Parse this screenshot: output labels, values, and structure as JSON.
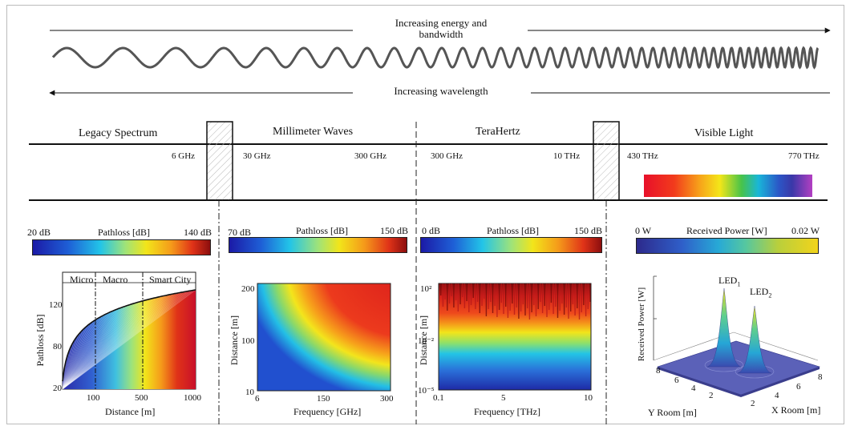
{
  "header": {
    "energy_label_line1": "Increasing energy and",
    "energy_label_line2": "bandwidth",
    "wavelength_label": "Increasing wavelength"
  },
  "bands": [
    {
      "title": "Legacy Spectrum",
      "upper": "6 GHz"
    },
    {
      "title": "Millimeter Waves",
      "lower": "30 GHz",
      "upper": "300 GHz"
    },
    {
      "title": "TeraHertz",
      "lower": "300 GHz",
      "upper": "10 THz"
    },
    {
      "title": "Visible Light",
      "lower": "430 THz",
      "upper": "770 THz"
    }
  ],
  "colorbars": [
    {
      "min": "20 dB",
      "label": "Pathloss [dB]",
      "max": "140 dB"
    },
    {
      "min": "70 dB",
      "label": "Pathloss [dB]",
      "max": "150 dB"
    },
    {
      "min": "0 dB",
      "label": "Pathloss [dB]",
      "max": "150 dB"
    },
    {
      "min": "0 W",
      "label": "Received Power [W]",
      "max": "0.02 W"
    }
  ],
  "plots": {
    "legacy": {
      "regions": [
        "Micro",
        "Macro",
        "Smart City"
      ],
      "ylabel": "Pathloss [dB]",
      "xlabel": "Distance [m]",
      "yticks": [
        "120",
        "80",
        "20"
      ],
      "xticks": [
        "100",
        "500",
        "1000"
      ]
    },
    "mmwave": {
      "ylabel": "Distance [m]",
      "xlabel": "Frequency [GHz]",
      "yticks": [
        "200",
        "100",
        "10"
      ],
      "xticks": [
        "6",
        "150",
        "300"
      ]
    },
    "thz": {
      "ylabel": "Distance [m]",
      "xlabel": "Frequency [THz]",
      "yticks": [
        "10²",
        "10⁻²",
        "10⁻⁵"
      ],
      "xticks": [
        "0.1",
        "5",
        "10"
      ]
    },
    "vlc": {
      "zlabel": "Received Power [W]",
      "ylabel": "Y Room [m]",
      "xlabel": "X Room [m]",
      "led1": "LED",
      "led1_sub": "1",
      "led2": "LED",
      "led2_sub": "2",
      "zticks": [],
      "yticks": [
        "8",
        "6",
        "4",
        "2"
      ],
      "xticks": [
        "2",
        "4",
        "6",
        "8"
      ]
    }
  }
}
